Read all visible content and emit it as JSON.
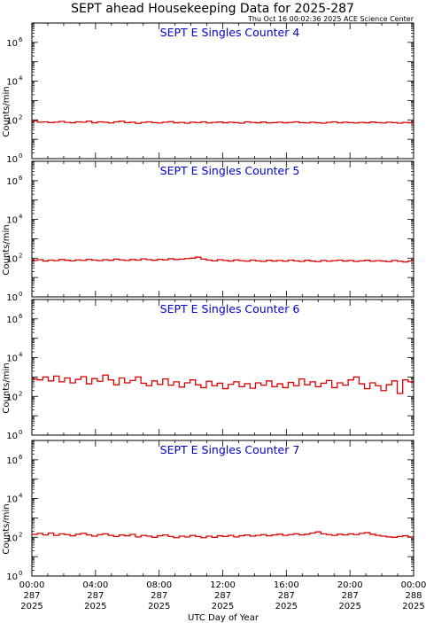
{
  "title": "SEPT ahead Housekeeping Data for 2025-287",
  "timestamp": "Thu Oct 16 00:02:36 2025 ACE Science Center",
  "chart_data": {
    "type": "line",
    "xlabel": "UTC Day of Year",
    "ylabel": "Counts/min",
    "x_range_hours": [
      0,
      24
    ],
    "x_ticks": [
      {
        "hour": 0,
        "time": "00:00",
        "doy": "287",
        "year": "2025"
      },
      {
        "hour": 4,
        "time": "04:00",
        "doy": "287",
        "year": "2025"
      },
      {
        "hour": 8,
        "time": "08:00",
        "doy": "287",
        "year": "2025"
      },
      {
        "hour": 12,
        "time": "12:00",
        "doy": "287",
        "year": "2025"
      },
      {
        "hour": 16,
        "time": "16:00",
        "doy": "287",
        "year": "2025"
      },
      {
        "hour": 20,
        "time": "20:00",
        "doy": "287",
        "year": "2025"
      },
      {
        "hour": 24,
        "time": "00:00",
        "doy": "288",
        "year": "2025"
      }
    ],
    "y_scale": "log",
    "y_range_log10": [
      0,
      7
    ],
    "y_ticks": [
      {
        "exp": 0,
        "base": "10",
        "power": "0"
      },
      {
        "exp": 2,
        "base": "10",
        "power": "2"
      },
      {
        "exp": 4,
        "base": "10",
        "power": "4"
      },
      {
        "exp": 6,
        "base": "10",
        "power": "6"
      }
    ],
    "line_color": "#dd0000",
    "panels": [
      {
        "title": "SEPT E Singles Counter 4",
        "log10_values": [
          1.95,
          1.88,
          1.9,
          1.86,
          1.88,
          1.92,
          1.87,
          1.85,
          1.9,
          1.88,
          1.93,
          1.85,
          1.9,
          1.88,
          1.84,
          1.9,
          1.93,
          1.86,
          1.88,
          1.82,
          1.87,
          1.9,
          1.86,
          1.84,
          1.88,
          1.91,
          1.85,
          1.87,
          1.83,
          1.88,
          1.86,
          1.9,
          1.84,
          1.87,
          1.89,
          1.85,
          1.88,
          1.86,
          1.83,
          1.9,
          1.87,
          1.85,
          1.89,
          1.84,
          1.86,
          1.88,
          1.85,
          1.87,
          1.9,
          1.86,
          1.84,
          1.88,
          1.85,
          1.83,
          1.87,
          1.9,
          1.85,
          1.88,
          1.86,
          1.84,
          1.87,
          1.85,
          1.89,
          1.86,
          1.84,
          1.88,
          1.86,
          1.83,
          1.87,
          1.85
        ]
      },
      {
        "title": "SEPT E Singles Counter 5",
        "log10_values": [
          1.88,
          1.92,
          1.85,
          1.9,
          1.87,
          1.93,
          1.89,
          1.86,
          1.91,
          1.88,
          1.94,
          1.9,
          1.87,
          1.92,
          1.89,
          1.95,
          1.91,
          1.88,
          1.93,
          1.9,
          1.96,
          1.92,
          1.89,
          1.94,
          1.91,
          1.97,
          1.93,
          1.95,
          1.98,
          2.0,
          2.05,
          1.95,
          1.9,
          1.86,
          1.92,
          1.88,
          1.85,
          1.91,
          1.87,
          1.84,
          1.9,
          1.86,
          1.83,
          1.89,
          1.85,
          1.88,
          1.84,
          1.9,
          1.86,
          1.83,
          1.89,
          1.85,
          1.82,
          1.88,
          1.84,
          1.87,
          1.9,
          1.85,
          1.88,
          1.83,
          1.86,
          1.89,
          1.84,
          1.87,
          1.85,
          1.82,
          1.88,
          1.84,
          1.8,
          1.86
        ]
      },
      {
        "title": "SEPT E Singles Counter 6",
        "log10_values": [
          2.9,
          2.85,
          3.0,
          2.8,
          3.05,
          2.75,
          2.95,
          2.7,
          2.88,
          3.02,
          2.65,
          2.92,
          2.78,
          3.1,
          2.85,
          2.6,
          2.95,
          2.7,
          2.82,
          3.0,
          2.68,
          2.55,
          2.8,
          2.62,
          2.9,
          2.58,
          2.75,
          2.48,
          2.7,
          2.85,
          2.6,
          2.45,
          2.78,
          2.55,
          2.68,
          2.4,
          2.62,
          2.75,
          2.5,
          2.66,
          2.42,
          2.7,
          2.58,
          2.8,
          2.5,
          2.65,
          2.45,
          2.72,
          2.55,
          2.9,
          2.6,
          2.75,
          2.5,
          2.68,
          2.82,
          2.45,
          2.7,
          2.58,
          2.85,
          3.0,
          2.65,
          2.4,
          2.7,
          2.55,
          2.3,
          2.6,
          2.8,
          2.15,
          2.85,
          2.75
        ]
      },
      {
        "title": "SEPT E Singles Counter 7",
        "log10_values": [
          2.15,
          2.2,
          2.12,
          2.22,
          2.1,
          2.18,
          2.14,
          2.08,
          2.16,
          2.2,
          2.12,
          2.06,
          2.14,
          2.18,
          2.1,
          2.04,
          2.12,
          2.08,
          2.15,
          2.02,
          2.1,
          2.06,
          2.0,
          2.08,
          2.12,
          2.04,
          1.98,
          2.06,
          2.02,
          2.1,
          2.04,
          1.98,
          2.06,
          2.0,
          2.08,
          2.04,
          2.1,
          2.02,
          2.08,
          2.12,
          2.06,
          2.1,
          2.14,
          2.08,
          2.12,
          2.16,
          2.1,
          2.14,
          2.18,
          2.12,
          2.16,
          2.22,
          2.28,
          2.18,
          2.14,
          2.1,
          2.16,
          2.12,
          2.18,
          2.14,
          2.2,
          2.24,
          2.16,
          2.1,
          2.06,
          2.02,
          2.0,
          2.04,
          2.08,
          2.02
        ]
      }
    ]
  }
}
